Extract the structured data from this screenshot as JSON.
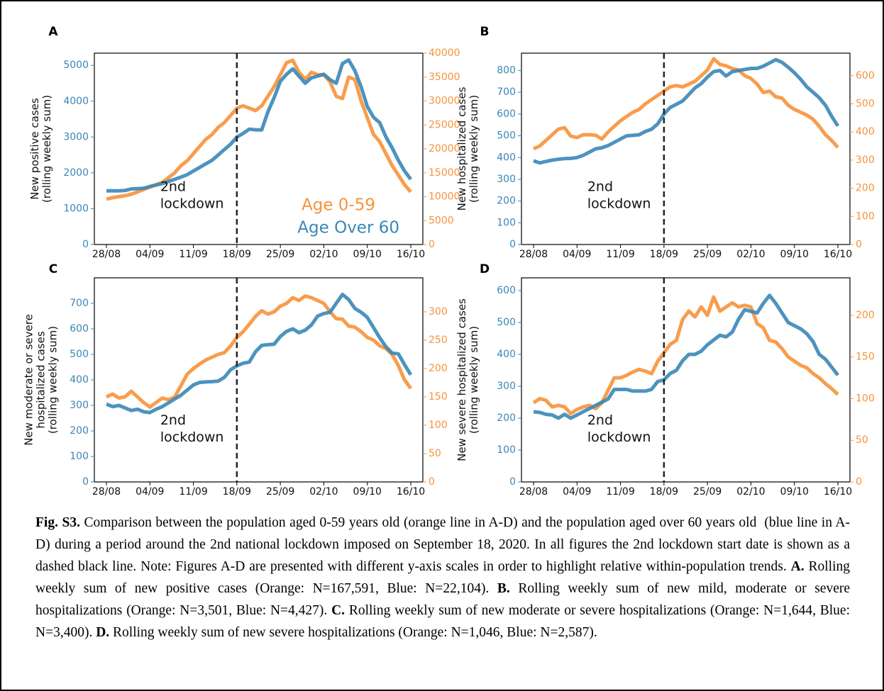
{
  "chart_data": [
    {
      "panel": "A",
      "type": "line",
      "ylabel": [
        "New positive cases",
        "(rolling weekly sum)"
      ],
      "categories": [
        "28/08",
        null,
        null,
        null,
        null,
        null,
        null,
        "04/09",
        null,
        null,
        null,
        null,
        null,
        null,
        "11/09",
        null,
        null,
        null,
        null,
        null,
        null,
        "18/09",
        null,
        null,
        null,
        null,
        null,
        null,
        "25/09",
        null,
        null,
        null,
        null,
        null,
        null,
        "02/10",
        null,
        null,
        null,
        null,
        null,
        null,
        "09/10",
        null,
        null,
        null,
        null,
        null,
        null,
        "16/10"
      ],
      "series": [
        {
          "name": "Age 0-59",
          "color": "#f7923a",
          "axis": "y2",
          "values": [
            9500,
            9800,
            10000,
            10200,
            10500,
            11000,
            11500,
            12000,
            12500,
            13000,
            14000,
            15000,
            16500,
            17500,
            19000,
            20500,
            22000,
            23000,
            24500,
            25500,
            27000,
            28500,
            29000,
            28500,
            28000,
            29000,
            31000,
            33000,
            35500,
            38000,
            38500,
            36000,
            34500,
            36000,
            35500,
            35500,
            34000,
            31000,
            30500,
            35000,
            34500,
            30000,
            26500,
            23000,
            21500,
            19000,
            16500,
            14500,
            12500,
            11000
          ]
        },
        {
          "name": "Age Over 60",
          "color": "#3a87b7",
          "axis": "y",
          "values": [
            1500,
            1500,
            1500,
            1510,
            1550,
            1560,
            1570,
            1620,
            1660,
            1700,
            1760,
            1820,
            1880,
            1950,
            2050,
            2150,
            2250,
            2350,
            2500,
            2650,
            2800,
            3000,
            3100,
            3220,
            3200,
            3200,
            3700,
            4100,
            4550,
            4750,
            4900,
            4700,
            4500,
            4650,
            4700,
            4750,
            4600,
            4500,
            5050,
            5150,
            4850,
            4400,
            3850,
            3550,
            3400,
            3000,
            2700,
            2350,
            2050,
            1820
          ]
        }
      ],
      "ylim": [
        0,
        5340
      ],
      "yticks": [
        0,
        1000,
        2000,
        3000,
        4000,
        5000
      ],
      "y2lim": [
        0,
        40000
      ],
      "y2ticks": [
        0,
        5000,
        10000,
        15000,
        20000,
        25000,
        30000,
        35000,
        40000
      ],
      "vline": "18/09",
      "vline_text": [
        "2nd",
        "lockdown"
      ],
      "legend": "lower-right"
    },
    {
      "panel": "B",
      "type": "line",
      "ylabel": [
        "New hospitalized cases",
        "(rolling weekly sum)"
      ],
      "categories": [
        "28/08",
        null,
        null,
        null,
        null,
        null,
        null,
        "04/09",
        null,
        null,
        null,
        null,
        null,
        null,
        "11/09",
        null,
        null,
        null,
        null,
        null,
        null,
        "18/09",
        null,
        null,
        null,
        null,
        null,
        null,
        "25/09",
        null,
        null,
        null,
        null,
        null,
        null,
        "02/10",
        null,
        null,
        null,
        null,
        null,
        null,
        "09/10",
        null,
        null,
        null,
        null,
        null,
        null,
        "16/10"
      ],
      "series": [
        {
          "color": "#f7923a",
          "axis": "y2",
          "values": [
            340,
            350,
            370,
            390,
            410,
            415,
            385,
            380,
            390,
            390,
            388,
            375,
            400,
            420,
            440,
            455,
            470,
            480,
            500,
            515,
            530,
            545,
            560,
            565,
            560,
            570,
            580,
            600,
            620,
            660,
            640,
            635,
            625,
            620,
            600,
            590,
            570,
            540,
            545,
            525,
            520,
            495,
            480,
            470,
            460,
            445,
            420,
            390,
            370,
            345
          ]
        },
        {
          "color": "#3a87b7",
          "axis": "y",
          "values": [
            385,
            375,
            382,
            388,
            392,
            395,
            396,
            400,
            410,
            425,
            440,
            445,
            455,
            470,
            485,
            500,
            502,
            505,
            520,
            530,
            555,
            600,
            630,
            645,
            660,
            690,
            720,
            740,
            770,
            795,
            800,
            775,
            795,
            800,
            805,
            810,
            810,
            820,
            835,
            850,
            838,
            815,
            790,
            760,
            725,
            700,
            675,
            640,
            590,
            545
          ]
        }
      ],
      "ylim": [
        0,
        880
      ],
      "yticks": [
        0,
        100,
        200,
        300,
        400,
        500,
        600,
        700,
        800
      ],
      "y2lim": [
        0,
        680
      ],
      "y2ticks": [
        0,
        100,
        200,
        300,
        400,
        500,
        600
      ],
      "vline": "18/09",
      "vline_text": [
        "2nd",
        "lockdown"
      ]
    },
    {
      "panel": "C",
      "type": "line",
      "ylabel": [
        "New moderate or severe",
        "hospitalized cases",
        "(rolling weekly sum)"
      ],
      "categories": [
        "28/08",
        null,
        null,
        null,
        null,
        null,
        null,
        "04/09",
        null,
        null,
        null,
        null,
        null,
        null,
        "11/09",
        null,
        null,
        null,
        null,
        null,
        null,
        "18/09",
        null,
        null,
        null,
        null,
        null,
        null,
        "25/09",
        null,
        null,
        null,
        null,
        null,
        null,
        "02/10",
        null,
        null,
        null,
        null,
        null,
        null,
        "09/10",
        null,
        null,
        null,
        null,
        null,
        null,
        "16/10"
      ],
      "series": [
        {
          "color": "#f7923a",
          "axis": "y2",
          "values": [
            150,
            155,
            148,
            150,
            160,
            150,
            140,
            132,
            140,
            148,
            145,
            150,
            170,
            190,
            200,
            208,
            215,
            220,
            225,
            228,
            240,
            255,
            265,
            278,
            292,
            302,
            296,
            300,
            310,
            315,
            325,
            320,
            328,
            325,
            320,
            315,
            300,
            288,
            287,
            275,
            273,
            265,
            255,
            250,
            240,
            235,
            225,
            205,
            180,
            165
          ]
        },
        {
          "color": "#3a87b7",
          "axis": "y",
          "values": [
            305,
            295,
            300,
            290,
            280,
            285,
            275,
            272,
            285,
            295,
            310,
            325,
            340,
            360,
            380,
            390,
            392,
            393,
            395,
            410,
            440,
            455,
            465,
            470,
            510,
            535,
            538,
            540,
            570,
            590,
            600,
            585,
            595,
            615,
            650,
            660,
            665,
            700,
            735,
            715,
            680,
            665,
            645,
            605,
            565,
            530,
            505,
            502,
            460,
            420
          ]
        }
      ],
      "ylim": [
        0,
        800
      ],
      "yticks": [
        0,
        100,
        200,
        300,
        400,
        500,
        600,
        700
      ],
      "y2lim": [
        0,
        360
      ],
      "y2ticks": [
        0,
        50,
        100,
        150,
        200,
        250,
        300
      ],
      "vline": "18/09",
      "vline_text": [
        "2nd",
        "lockdown"
      ]
    },
    {
      "panel": "D",
      "type": "line",
      "ylabel": [
        "New severe hospitalized cases",
        "(rolling weekly sum)"
      ],
      "categories": [
        "28/08",
        null,
        null,
        null,
        null,
        null,
        null,
        "04/09",
        null,
        null,
        null,
        null,
        null,
        null,
        "11/09",
        null,
        null,
        null,
        null,
        null,
        null,
        "18/09",
        null,
        null,
        null,
        null,
        null,
        null,
        "25/09",
        null,
        null,
        null,
        null,
        null,
        null,
        "02/10",
        null,
        null,
        null,
        null,
        null,
        null,
        "09/10",
        null,
        null,
        null,
        null,
        null,
        null,
        "16/10"
      ],
      "series": [
        {
          "color": "#f7923a",
          "axis": "y2",
          "values": [
            95,
            100,
            98,
            90,
            92,
            90,
            82,
            87,
            90,
            92,
            88,
            95,
            110,
            125,
            125,
            128,
            132,
            135,
            133,
            130,
            145,
            155,
            165,
            170,
            195,
            205,
            198,
            210,
            200,
            222,
            205,
            210,
            215,
            210,
            212,
            210,
            190,
            185,
            170,
            168,
            160,
            150,
            145,
            140,
            137,
            130,
            125,
            118,
            112,
            105
          ]
        },
        {
          "color": "#3a87b7",
          "axis": "y",
          "values": [
            220,
            218,
            212,
            210,
            200,
            212,
            200,
            210,
            220,
            230,
            240,
            250,
            260,
            290,
            290,
            290,
            285,
            285,
            285,
            290,
            315,
            320,
            340,
            350,
            380,
            400,
            400,
            410,
            430,
            445,
            460,
            455,
            470,
            510,
            540,
            535,
            530,
            560,
            585,
            560,
            530,
            500,
            490,
            480,
            465,
            440,
            400,
            385,
            360,
            335
          ]
        }
      ],
      "ylim": [
        0,
        640
      ],
      "yticks": [
        0,
        100,
        200,
        300,
        400,
        500,
        600
      ],
      "y2lim": [
        0,
        245
      ],
      "y2ticks": [
        0,
        50,
        100,
        150,
        200
      ],
      "vline": "18/09",
      "vline_text": [
        "2nd",
        "lockdown"
      ]
    }
  ],
  "caption": [
    {
      "text": "Fig. S3.",
      "bold": true
    },
    {
      "text": " Comparison between the population aged 0-59 years old (orange line in A-D) and the population aged over 60 years old  (blue line in A-D) during a period around the 2nd national lockdown imposed on September 18, 2020. In all figures the 2nd lockdown start date is shown as a dashed black line. Note: Figures A-D are presented with different y-axis scales in order to highlight relative within-population trends. ",
      "bold": false
    },
    {
      "text": "A.",
      "bold": true
    },
    {
      "text": " Rolling weekly sum of new positive cases (Orange: N=167,591, Blue: N=22,104). ",
      "bold": false
    },
    {
      "text": "B.",
      "bold": true
    },
    {
      "text": " Rolling weekly sum of new mild, moderate or severe hospitalizations (Orange: N=3,501, Blue: N=4,427). ",
      "bold": false
    },
    {
      "text": "C.",
      "bold": true
    },
    {
      "text": " Rolling weekly sum of new moderate or severe hospitalizations (Orange: N=1,644, Blue: N=3,400). ",
      "bold": false
    },
    {
      "text": "D.",
      "bold": true
    },
    {
      "text": " Rolling weekly sum of new severe hospitalizations (Orange: N=1,046, Blue: N=2,587).",
      "bold": false
    }
  ]
}
